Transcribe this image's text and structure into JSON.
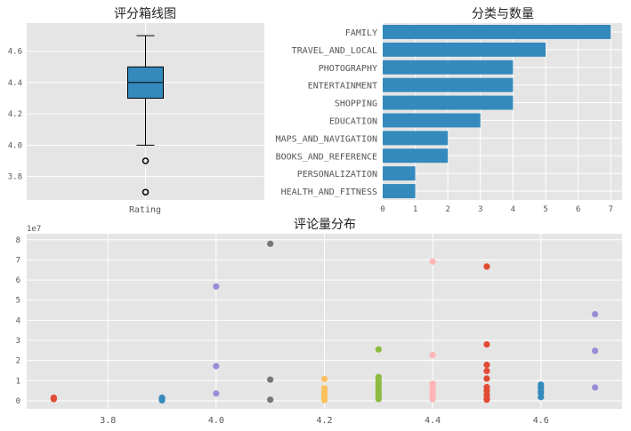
{
  "chart_data": [
    {
      "type": "box",
      "title": "评分箱线图",
      "category_label": "Rating",
      "ylim": [
        3.65,
        4.78
      ],
      "yticks": [
        "3.8",
        "4.0",
        "4.2",
        "4.4",
        "4.6"
      ],
      "stats": {
        "whislo": 4.0,
        "q1": 4.3,
        "median": 4.4,
        "q3": 4.5,
        "whishi": 4.7
      },
      "fliers": [
        3.9,
        3.7
      ],
      "box_color": "#348ABD",
      "grid": true
    },
    {
      "type": "bar",
      "orientation": "horizontal",
      "title": "分类与数量",
      "categories": [
        "FAMILY",
        "TRAVEL_AND_LOCAL",
        "PHOTOGRAPHY",
        "ENTERTAINMENT",
        "SHOPPING",
        "EDUCATION",
        "MAPS_AND_NAVIGATION",
        "BOOKS_AND_REFERENCE",
        "PERSONALIZATION",
        "HEALTH_AND_FITNESS"
      ],
      "values": [
        7,
        5,
        4,
        4,
        4,
        3,
        2,
        2,
        1,
        1
      ],
      "xlim": [
        0,
        7.35
      ],
      "xticks": [
        "0",
        "1",
        "2",
        "3",
        "4",
        "5",
        "6",
        "7"
      ],
      "bar_color": "#348ABD",
      "grid": true
    },
    {
      "type": "scatter",
      "title": "评论量分布",
      "offset_label": "1e7",
      "xlim": [
        3.65,
        4.75
      ],
      "ylim": [
        -0.4,
        8.3
      ],
      "xticks": [
        "3.8",
        "4.0",
        "4.2",
        "4.4",
        "4.6"
      ],
      "yticks": [
        "0",
        "1",
        "2",
        "3",
        "4",
        "5",
        "6",
        "7",
        "8"
      ],
      "grid": true,
      "series": [
        {
          "color": "#E24A33",
          "points": [
            [
              3.7,
              0.15
            ],
            [
              3.7,
              0.08
            ]
          ]
        },
        {
          "color": "#348ABD",
          "points": [
            [
              3.9,
              0.15
            ],
            [
              3.9,
              0.08
            ],
            [
              3.9,
              0.02
            ]
          ]
        },
        {
          "color": "#988ED5",
          "points": [
            [
              4.0,
              5.68
            ],
            [
              4.0,
              1.72
            ],
            [
              4.0,
              0.36
            ]
          ]
        },
        {
          "color": "#777777",
          "points": [
            [
              4.1,
              7.8
            ],
            [
              4.1,
              1.05
            ],
            [
              4.1,
              0.05
            ]
          ]
        },
        {
          "color": "#FBC15E",
          "points": [
            [
              4.2,
              1.08
            ],
            [
              4.2,
              0.62
            ],
            [
              4.2,
              0.48
            ],
            [
              4.2,
              0.35
            ],
            [
              4.2,
              0.22
            ],
            [
              4.2,
              0.1
            ],
            [
              4.2,
              0.03
            ]
          ]
        },
        {
          "color": "#8EBA42",
          "points": [
            [
              4.3,
              2.55
            ],
            [
              4.3,
              1.18
            ],
            [
              4.3,
              1.02
            ],
            [
              4.3,
              0.88
            ],
            [
              4.3,
              0.75
            ],
            [
              4.3,
              0.6
            ],
            [
              4.3,
              0.45
            ],
            [
              4.3,
              0.3
            ],
            [
              4.3,
              0.18
            ],
            [
              4.3,
              0.08
            ]
          ]
        },
        {
          "color": "#FFB5B8",
          "points": [
            [
              4.4,
              6.92
            ],
            [
              4.4,
              2.27
            ],
            [
              4.4,
              0.85
            ],
            [
              4.4,
              0.65
            ],
            [
              4.4,
              0.5
            ],
            [
              4.4,
              0.35
            ],
            [
              4.4,
              0.2
            ],
            [
              4.4,
              0.08
            ]
          ]
        },
        {
          "color": "#E24A33",
          "points": [
            [
              4.5,
              6.67
            ],
            [
              4.5,
              2.8
            ],
            [
              4.5,
              1.78
            ],
            [
              4.5,
              1.48
            ],
            [
              4.5,
              1.1
            ],
            [
              4.5,
              0.68
            ],
            [
              4.5,
              0.5
            ],
            [
              4.5,
              0.3
            ],
            [
              4.5,
              0.15
            ],
            [
              4.5,
              0.05
            ]
          ]
        },
        {
          "color": "#348ABD",
          "points": [
            [
              4.6,
              0.8
            ],
            [
              4.6,
              0.65
            ],
            [
              4.6,
              0.48
            ],
            [
              4.6,
              0.38
            ],
            [
              4.6,
              0.18
            ]
          ]
        },
        {
          "color": "#988ED5",
          "points": [
            [
              4.7,
              4.3
            ],
            [
              4.7,
              2.48
            ],
            [
              4.7,
              0.66
            ]
          ]
        }
      ]
    }
  ]
}
